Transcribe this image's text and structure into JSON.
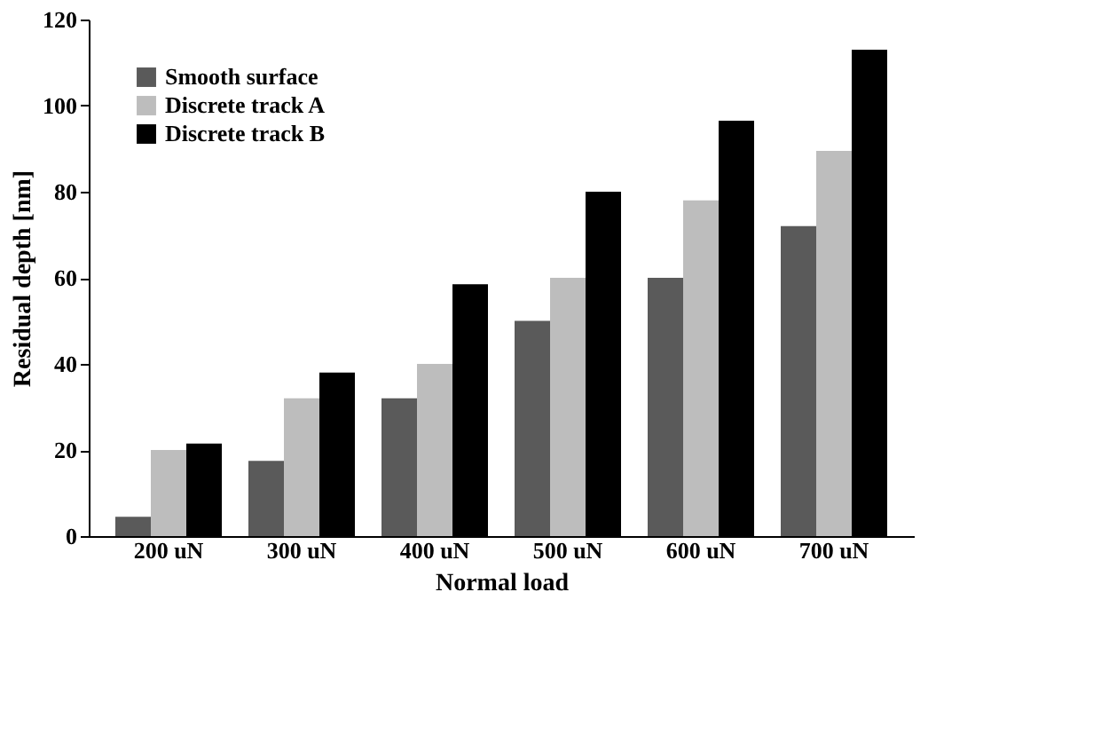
{
  "chart_data": {
    "type": "bar",
    "xlabel": "Normal load",
    "ylabel": "Residual depth [nm]",
    "categories": [
      "200 uN",
      "300 uN",
      "400 uN",
      "500 uN",
      "600 uN",
      "700 uN"
    ],
    "series": [
      {
        "name": "Smooth surface",
        "color": "#5a5a5a",
        "values": [
          4.5,
          17.5,
          32,
          50,
          60,
          72
        ]
      },
      {
        "name": "Discrete track A",
        "color": "#bdbdbd",
        "values": [
          20,
          32,
          40,
          60,
          78,
          89.5
        ]
      },
      {
        "name": "Discrete track B",
        "color": "#000000",
        "values": [
          21.5,
          38,
          58.5,
          80,
          96.5,
          113
        ]
      }
    ],
    "ylim": [
      0,
      120
    ],
    "yticks": [
      0,
      20,
      40,
      60,
      80,
      100,
      120
    ],
    "grid": false,
    "legend": "top left"
  }
}
